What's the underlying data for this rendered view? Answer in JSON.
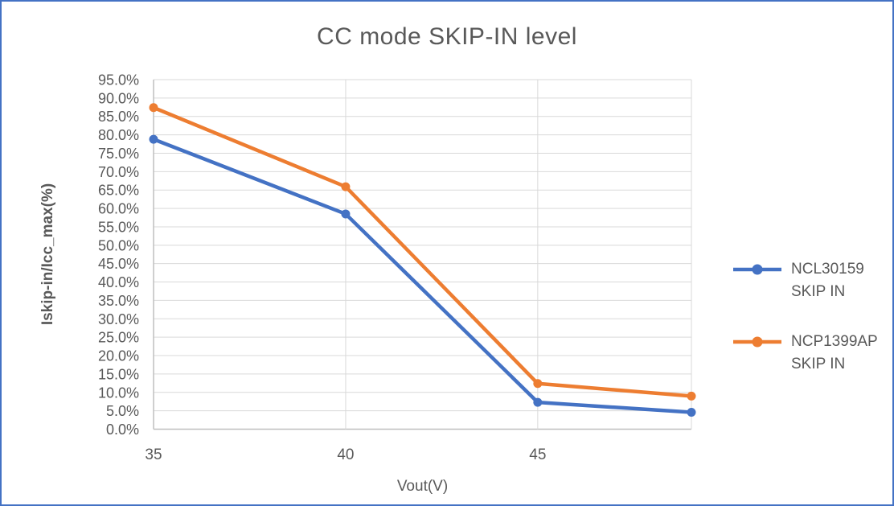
{
  "chart_data": {
    "type": "line",
    "title": "CC mode SKIP-IN level",
    "xlabel": "Vout(V)",
    "ylabel": "Iskip-in/Icc_max(%)",
    "x": [
      35,
      40,
      45,
      49
    ],
    "series": [
      {
        "name": "NCL30159 SKIP IN",
        "legend_lines": [
          "NCL30159",
          "SKIP IN"
        ],
        "color": "#4472C4",
        "values": [
          78.8,
          58.5,
          7.3,
          4.6
        ]
      },
      {
        "name": "NCP1399AP SKIP IN",
        "legend_lines": [
          "NCP1399AP",
          "SKIP IN"
        ],
        "color": "#ED7D31",
        "values": [
          87.4,
          65.9,
          12.4,
          9.0
        ]
      }
    ],
    "xlim": [
      35,
      49
    ],
    "ylim": [
      0,
      95
    ],
    "x_ticks": [
      35,
      40,
      45
    ],
    "y_ticks": [
      0,
      5,
      10,
      15,
      20,
      25,
      30,
      35,
      40,
      45,
      50,
      55,
      60,
      65,
      70,
      75,
      80,
      85,
      90,
      95
    ],
    "y_tick_suffix": "%",
    "y_tick_decimals": 1,
    "grid": true,
    "legend_position": "right"
  },
  "colors": {
    "border": "#4472C4",
    "text": "#595959",
    "gridline": "#D9D9D9",
    "axis_line": "#BFBFBF",
    "background": "#FFFFFF"
  }
}
